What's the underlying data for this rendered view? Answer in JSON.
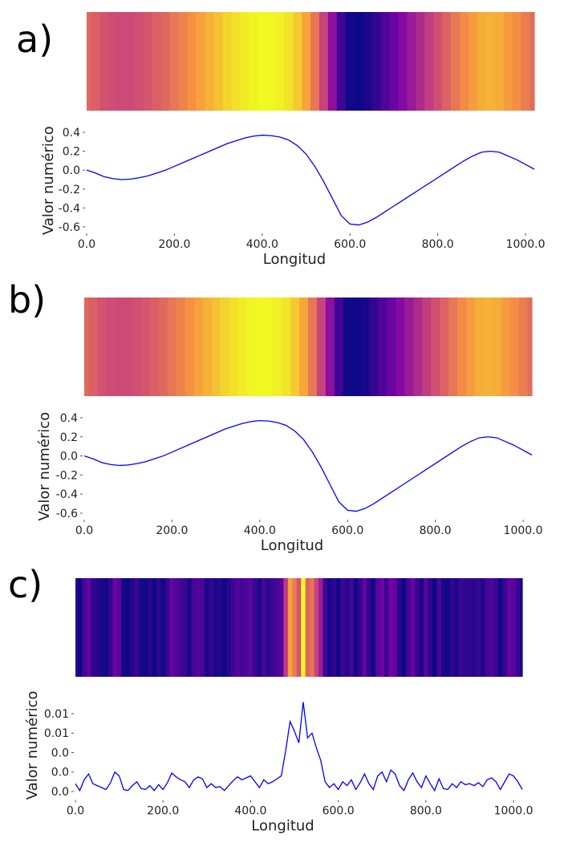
{
  "chart_data": [
    {
      "type": "line",
      "label": "a)",
      "xlabel": "Longitud",
      "ylabel": "Valor numérico",
      "colormap": "plasma",
      "x": [
        0,
        20,
        40,
        60,
        80,
        100,
        120,
        140,
        160,
        180,
        200,
        220,
        240,
        260,
        280,
        300,
        320,
        340,
        360,
        380,
        400,
        420,
        440,
        460,
        480,
        500,
        520,
        540,
        560,
        580,
        600,
        620,
        640,
        660,
        680,
        700,
        720,
        740,
        760,
        780,
        800,
        820,
        840,
        860,
        880,
        900,
        920,
        940,
        960,
        980,
        1000,
        1020
      ],
      "series": [
        {
          "color": "#0000ff",
          "values": [
            0.0,
            -0.03,
            -0.07,
            -0.09,
            -0.1,
            -0.095,
            -0.08,
            -0.06,
            -0.03,
            0.0,
            0.04,
            0.08,
            0.12,
            0.16,
            0.2,
            0.24,
            0.28,
            0.31,
            0.34,
            0.36,
            0.37,
            0.365,
            0.35,
            0.32,
            0.26,
            0.17,
            0.04,
            -0.12,
            -0.3,
            -0.48,
            -0.57,
            -0.58,
            -0.55,
            -0.5,
            -0.44,
            -0.38,
            -0.32,
            -0.26,
            -0.2,
            -0.14,
            -0.08,
            -0.02,
            0.04,
            0.1,
            0.15,
            0.19,
            0.2,
            0.19,
            0.15,
            0.11,
            0.06,
            0.01
          ]
        }
      ],
      "xlim": [
        0,
        1020
      ],
      "ylim": [
        -0.66,
        0.44
      ],
      "xticks": [
        {
          "value": 0,
          "label": "0.0"
        },
        {
          "value": 200,
          "label": "200.0"
        },
        {
          "value": 400,
          "label": "400.0"
        },
        {
          "value": 600,
          "label": "600.0"
        },
        {
          "value": 800,
          "label": "800.0"
        },
        {
          "value": 1000,
          "label": "1000.0"
        }
      ],
      "yticks": [
        0.4,
        0.2,
        {
          "value": 0,
          "label": "0.0"
        },
        -0.2,
        -0.4,
        -0.6
      ]
    },
    {
      "type": "line",
      "label": "b)",
      "xlabel": "Longitud",
      "ylabel": "Valor numérico",
      "colormap": "plasma",
      "x": [
        0,
        20,
        40,
        60,
        80,
        100,
        120,
        140,
        160,
        180,
        200,
        220,
        240,
        260,
        280,
        300,
        320,
        340,
        360,
        380,
        400,
        420,
        440,
        460,
        480,
        500,
        520,
        540,
        560,
        580,
        600,
        620,
        640,
        660,
        680,
        700,
        720,
        740,
        760,
        780,
        800,
        820,
        840,
        860,
        880,
        900,
        920,
        940,
        960,
        980,
        1000,
        1020
      ],
      "series": [
        {
          "color": "#0000ff",
          "values": [
            0.0,
            -0.03,
            -0.07,
            -0.09,
            -0.1,
            -0.095,
            -0.08,
            -0.06,
            -0.03,
            0.0,
            0.04,
            0.08,
            0.12,
            0.16,
            0.2,
            0.24,
            0.28,
            0.31,
            0.34,
            0.36,
            0.37,
            0.365,
            0.35,
            0.32,
            0.26,
            0.17,
            0.04,
            -0.12,
            -0.3,
            -0.48,
            -0.57,
            -0.58,
            -0.55,
            -0.5,
            -0.44,
            -0.38,
            -0.32,
            -0.26,
            -0.2,
            -0.14,
            -0.08,
            -0.02,
            0.04,
            0.1,
            0.15,
            0.19,
            0.2,
            0.19,
            0.15,
            0.11,
            0.06,
            0.01
          ]
        }
      ],
      "xlim": [
        0,
        1020
      ],
      "ylim": [
        -0.66,
        0.44
      ],
      "xticks": [
        {
          "value": 0,
          "label": "0.0"
        },
        {
          "value": 200,
          "label": "200.0"
        },
        {
          "value": 400,
          "label": "400.0"
        },
        {
          "value": 600,
          "label": "600.0"
        },
        {
          "value": 800,
          "label": "800.0"
        },
        {
          "value": 1000,
          "label": "1000.0"
        }
      ],
      "yticks": [
        0.4,
        0.2,
        {
          "value": 0,
          "label": "0.0"
        },
        -0.2,
        -0.4,
        -0.6
      ]
    },
    {
      "type": "line",
      "label": "c)",
      "xlabel": "Longitud",
      "ylabel": "Valor numérico",
      "colormap": "plasma",
      "x": [
        0,
        10,
        20,
        30,
        40,
        50,
        60,
        70,
        80,
        90,
        100,
        110,
        120,
        130,
        140,
        150,
        160,
        170,
        180,
        190,
        200,
        210,
        220,
        230,
        240,
        250,
        260,
        270,
        280,
        290,
        300,
        310,
        320,
        330,
        340,
        350,
        360,
        370,
        380,
        390,
        400,
        410,
        420,
        430,
        440,
        450,
        460,
        470,
        480,
        490,
        500,
        510,
        520,
        530,
        540,
        550,
        560,
        570,
        580,
        590,
        600,
        610,
        620,
        630,
        640,
        650,
        660,
        670,
        680,
        690,
        700,
        710,
        720,
        730,
        740,
        750,
        760,
        770,
        780,
        790,
        800,
        810,
        820,
        830,
        840,
        850,
        860,
        870,
        880,
        890,
        900,
        910,
        920,
        930,
        940,
        950,
        960,
        970,
        980,
        990,
        1000,
        1010,
        1020
      ],
      "series": [
        {
          "color": "#0000ff",
          "values": [
            0.0008,
            0.0001,
            0.0012,
            0.0018,
            0.0008,
            0.0006,
            0.0004,
            0.0002,
            0.0009,
            0.002,
            0.0016,
            0.0002,
            0.0001,
            0.0006,
            0.001,
            0.0003,
            0.0002,
            0.0006,
            0.0001,
            0.0007,
            0.0002,
            0.0009,
            0.0019,
            0.0015,
            0.0012,
            0.001,
            0.0004,
            0.0012,
            0.0015,
            0.0013,
            0.0004,
            0.0008,
            0.0004,
            0.0005,
            0.0001,
            0.0006,
            0.0011,
            0.0015,
            0.0012,
            0.0014,
            0.0016,
            0.001,
            0.0004,
            0.0012,
            0.0008,
            0.001,
            0.0013,
            0.0016,
            0.0042,
            0.0072,
            0.0062,
            0.005,
            0.0092,
            0.0055,
            0.006,
            0.0045,
            0.0032,
            0.001,
            0.0004,
            0.0008,
            0.0002,
            0.001,
            0.0006,
            0.0012,
            0.0002,
            0.0009,
            0.0018,
            0.0008,
            0.0002,
            0.0016,
            0.002,
            0.001,
            0.0022,
            0.0018,
            0.0006,
            0.0001,
            0.0012,
            0.0019,
            0.001,
            0.0004,
            0.0016,
            0.0008,
            0.0001,
            0.0013,
            0.0003,
            0.0002,
            0.0008,
            0.0004,
            0.001,
            0.0007,
            0.0008,
            0.0006,
            0.0009,
            0.0005,
            0.0012,
            0.0014,
            0.001,
            0.0002,
            0.001,
            0.0018,
            0.0016,
            0.001,
            0.0002
          ]
        }
      ],
      "xlim": [
        0,
        1020
      ],
      "ylim": [
        -0.0008,
        0.0103
      ],
      "xticks": [
        {
          "value": 0,
          "label": "0.0"
        },
        {
          "value": 200,
          "label": "200.0"
        },
        {
          "value": 400,
          "label": "400.0"
        },
        {
          "value": 600,
          "label": "600.0"
        },
        {
          "value": 800,
          "label": "800.0"
        },
        {
          "value": 1000,
          "label": "1000.0"
        }
      ],
      "yticks": [
        {
          "value": 0.008,
          "label": "0.01"
        },
        {
          "value": 0.006,
          "label": "0.01"
        },
        {
          "value": 0.004,
          "label": "0.0"
        },
        {
          "value": 0.002,
          "label": "0.0"
        },
        {
          "value": 0,
          "label": "0.0"
        }
      ]
    }
  ]
}
